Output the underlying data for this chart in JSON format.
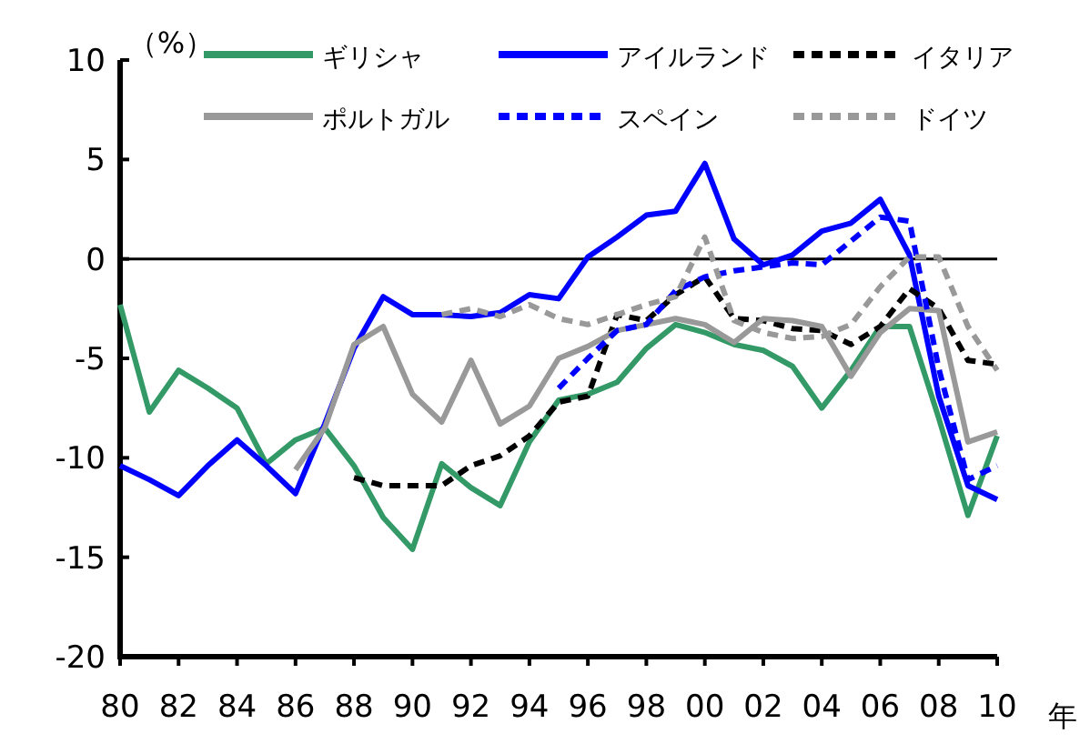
{
  "chart_data": {
    "type": "line",
    "ylabel": "（%）",
    "xlabel": "年",
    "xlim": [
      1980,
      2010
    ],
    "ylim": [
      -20,
      10
    ],
    "xticks": [
      {
        "value": 1980,
        "label": "80"
      },
      {
        "value": 1982,
        "label": "82"
      },
      {
        "value": 1984,
        "label": "84"
      },
      {
        "value": 1986,
        "label": "86"
      },
      {
        "value": 1988,
        "label": "88"
      },
      {
        "value": 1990,
        "label": "90"
      },
      {
        "value": 1992,
        "label": "92"
      },
      {
        "value": 1994,
        "label": "94"
      },
      {
        "value": 1996,
        "label": "96"
      },
      {
        "value": 1998,
        "label": "98"
      },
      {
        "value": 2000,
        "label": "00"
      },
      {
        "value": 2002,
        "label": "02"
      },
      {
        "value": 2004,
        "label": "04"
      },
      {
        "value": 2006,
        "label": "06"
      },
      {
        "value": 2008,
        "label": "08"
      },
      {
        "value": 2010,
        "label": "10"
      }
    ],
    "yticks": [
      -20,
      -15,
      -10,
      -5,
      0,
      5,
      10
    ],
    "x": [
      1980,
      1981,
      1982,
      1983,
      1984,
      1985,
      1986,
      1987,
      1988,
      1989,
      1990,
      1991,
      1992,
      1993,
      1994,
      1995,
      1996,
      1997,
      1998,
      1999,
      2000,
      2001,
      2002,
      2003,
      2004,
      2005,
      2006,
      2007,
      2008,
      2009,
      2010
    ],
    "grid": false,
    "legend": "top",
    "marker": "none",
    "ref_lines": [
      {
        "axis": "y",
        "value": 0,
        "color": "#000000",
        "line_style": "solid"
      }
    ],
    "series": [
      {
        "name": "ギリシャ",
        "color": "#339966",
        "line_style": "solid",
        "values": [
          -2.3,
          -7.7,
          -5.6,
          -6.5,
          -7.5,
          -10.3,
          -9.1,
          -8.5,
          -10.4,
          -13.0,
          -14.6,
          -10.3,
          -11.5,
          -12.4,
          -9.2,
          -7.1,
          -6.8,
          -6.2,
          -4.5,
          -3.3,
          -3.7,
          -4.3,
          -4.6,
          -5.4,
          -7.5,
          -5.6,
          -3.4,
          -3.4,
          -8.0,
          -12.9,
          -8.9
        ]
      },
      {
        "name": "アイルランド",
        "color": "#0000ff",
        "line_style": "solid",
        "values": [
          -10.4,
          -11.1,
          -11.9,
          -10.4,
          -9.1,
          -10.4,
          -11.8,
          -8.3,
          -4.5,
          -1.9,
          -2.8,
          -2.8,
          -2.9,
          -2.7,
          -1.8,
          -2.0,
          0.1,
          1.1,
          2.2,
          2.4,
          4.8,
          1.0,
          -0.3,
          0.2,
          1.4,
          1.8,
          3.0,
          0.2,
          -6.9,
          -11.4,
          -12.1
        ]
      },
      {
        "name": "イタリア",
        "color": "#000000",
        "line_style": "dashed",
        "values": [
          null,
          null,
          null,
          null,
          null,
          null,
          null,
          null,
          -11.0,
          -11.4,
          -11.4,
          -11.4,
          -10.4,
          -9.9,
          -8.9,
          -7.2,
          -6.9,
          -2.8,
          -3.1,
          -1.8,
          -0.9,
          -3.0,
          -3.1,
          -3.5,
          -3.6,
          -4.3,
          -3.4,
          -1.5,
          -2.5,
          -5.1,
          -5.3
        ]
      },
      {
        "name": "ポルトガル",
        "color": "#999999",
        "line_style": "solid",
        "values": [
          null,
          null,
          null,
          null,
          null,
          null,
          -10.6,
          -8.5,
          -4.3,
          -3.4,
          -6.8,
          -8.2,
          -5.1,
          -8.3,
          -7.4,
          -5.0,
          -4.4,
          -3.6,
          -3.3,
          -3.0,
          -3.3,
          -4.2,
          -3.0,
          -3.1,
          -3.4,
          -5.9,
          -3.7,
          -2.5,
          -2.6,
          -9.2,
          -8.7
        ]
      },
      {
        "name": "スペイン",
        "color": "#0000ff",
        "line_style": "dashed",
        "values": [
          null,
          null,
          null,
          null,
          null,
          null,
          null,
          null,
          null,
          null,
          null,
          null,
          null,
          null,
          null,
          -6.5,
          -5.0,
          -3.6,
          -3.3,
          -1.6,
          -0.9,
          -0.6,
          -0.4,
          -0.2,
          -0.3,
          0.9,
          2.1,
          1.9,
          -5.5,
          -11.1,
          -10.4
        ]
      },
      {
        "name": "ドイツ",
        "color": "#999999",
        "line_style": "dashed",
        "values": [
          null,
          null,
          null,
          null,
          null,
          null,
          null,
          null,
          null,
          null,
          null,
          -2.8,
          -2.5,
          -2.9,
          -2.3,
          -3.0,
          -3.3,
          -2.8,
          -2.3,
          -1.9,
          1.1,
          -3.1,
          -3.7,
          -4.0,
          -3.9,
          -3.3,
          -1.4,
          0.1,
          0.1,
          -3.4,
          -5.6
        ]
      }
    ]
  }
}
